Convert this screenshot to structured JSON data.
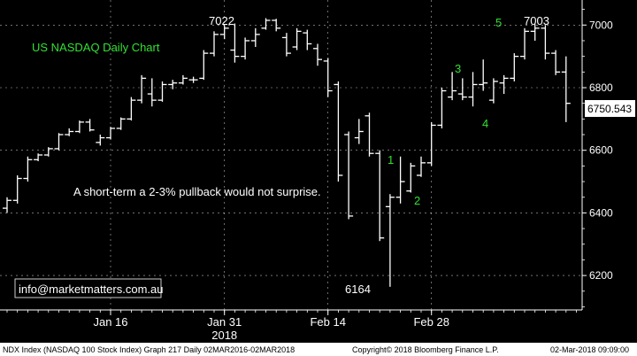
{
  "chart_data": {
    "type": "ohlc",
    "title": "US NASDAQ Daily Chart",
    "y_ticks": [
      6200,
      6400,
      6600,
      6800,
      7000
    ],
    "y_tick_labels": [
      "6200",
      "6400",
      "6600",
      "6800",
      "7000"
    ],
    "ylim": [
      6090,
      7080
    ],
    "x_tick_labels": [
      "Jan 16",
      "Jan 31",
      "Feb 14",
      "Feb 28"
    ],
    "x_tick_days": [
      10,
      21,
      31,
      41
    ],
    "x_year_label": "2018",
    "last_price": "6750.543",
    "colors": {
      "bars": "#ffffff",
      "grid": "#ffffff",
      "title": "#33e033",
      "wave_labels": "#33e033",
      "annotation": "#ffffff",
      "footer": "#000000"
    },
    "bars": [
      {
        "o": 6415,
        "h": 6450,
        "l": 6400,
        "c": 6440
      },
      {
        "o": 6440,
        "h": 6520,
        "l": 6430,
        "c": 6510
      },
      {
        "o": 6510,
        "h": 6580,
        "l": 6500,
        "c": 6570
      },
      {
        "o": 6570,
        "h": 6590,
        "l": 6565,
        "c": 6585
      },
      {
        "o": 6585,
        "h": 6610,
        "l": 6580,
        "c": 6605
      },
      {
        "o": 6605,
        "h": 6655,
        "l": 6600,
        "c": 6650
      },
      {
        "o": 6650,
        "h": 6670,
        "l": 6645,
        "c": 6660
      },
      {
        "o": 6660,
        "h": 6695,
        "l": 6655,
        "c": 6690
      },
      {
        "o": 6690,
        "h": 6700,
        "l": 6660,
        "c": 6665
      },
      {
        "o": 6625,
        "h": 6650,
        "l": 6615,
        "c": 6640
      },
      {
        "o": 6640,
        "h": 6675,
        "l": 6635,
        "c": 6670
      },
      {
        "o": 6670,
        "h": 6705,
        "l": 6665,
        "c": 6700
      },
      {
        "o": 6700,
        "h": 6770,
        "l": 6695,
        "c": 6760
      },
      {
        "o": 6760,
        "h": 6840,
        "l": 6750,
        "c": 6830
      },
      {
        "o": 6780,
        "h": 6830,
        "l": 6740,
        "c": 6760
      },
      {
        "o": 6760,
        "h": 6820,
        "l": 6755,
        "c": 6810
      },
      {
        "o": 6810,
        "h": 6825,
        "l": 6795,
        "c": 6815
      },
      {
        "o": 6815,
        "h": 6840,
        "l": 6810,
        "c": 6830
      },
      {
        "o": 6825,
        "h": 6835,
        "l": 6815,
        "c": 6825
      },
      {
        "o": 6830,
        "h": 6920,
        "l": 6825,
        "c": 6910
      },
      {
        "o": 6910,
        "h": 6980,
        "l": 6900,
        "c": 6970
      },
      {
        "o": 6970,
        "h": 7000,
        "l": 6955,
        "c": 6990
      },
      {
        "o": 6920,
        "h": 7005,
        "l": 6880,
        "c": 6900
      },
      {
        "o": 6900,
        "h": 6960,
        "l": 6890,
        "c": 6950
      },
      {
        "o": 6950,
        "h": 6990,
        "l": 6930,
        "c": 6970
      },
      {
        "o": 6990,
        "h": 7022,
        "l": 6985,
        "c": 7015
      },
      {
        "o": 7015,
        "h": 7020,
        "l": 6980,
        "c": 6990
      },
      {
        "o": 6960,
        "h": 6975,
        "l": 6900,
        "c": 6910
      },
      {
        "o": 6930,
        "h": 6990,
        "l": 6920,
        "c": 6980
      },
      {
        "o": 6975,
        "h": 6985,
        "l": 6920,
        "c": 6940
      },
      {
        "o": 6925,
        "h": 6940,
        "l": 6870,
        "c": 6890
      },
      {
        "o": 6885,
        "h": 6895,
        "l": 6770,
        "c": 6790
      },
      {
        "o": 6810,
        "h": 6820,
        "l": 6500,
        "c": 6520
      },
      {
        "o": 6650,
        "h": 6660,
        "l": 6380,
        "c": 6390
      },
      {
        "o": 6640,
        "h": 6700,
        "l": 6620,
        "c": 6660
      },
      {
        "o": 6710,
        "h": 6720,
        "l": 6580,
        "c": 6590
      },
      {
        "o": 6590,
        "h": 6600,
        "l": 6310,
        "c": 6320
      },
      {
        "o": 6420,
        "h": 6460,
        "l": 6164,
        "c": 6450
      },
      {
        "o": 6450,
        "h": 6580,
        "l": 6430,
        "c": 6500
      },
      {
        "o": 6470,
        "h": 6560,
        "l": 6465,
        "c": 6550
      },
      {
        "o": 6520,
        "h": 6580,
        "l": 6515,
        "c": 6560
      },
      {
        "o": 6560,
        "h": 6690,
        "l": 6550,
        "c": 6680
      },
      {
        "o": 6680,
        "h": 6800,
        "l": 6670,
        "c": 6790
      },
      {
        "o": 6770,
        "h": 6850,
        "l": 6760,
        "c": 6790
      },
      {
        "o": 6780,
        "h": 6830,
        "l": 6760,
        "c": 6770
      },
      {
        "o": 6770,
        "h": 6850,
        "l": 6740,
        "c": 6810
      },
      {
        "o": 6810,
        "h": 6890,
        "l": 6790,
        "c": 6815
      },
      {
        "o": 6760,
        "h": 6830,
        "l": 6750,
        "c": 6820
      },
      {
        "o": 6815,
        "h": 6840,
        "l": 6780,
        "c": 6830
      },
      {
        "o": 6830,
        "h": 6910,
        "l": 6820,
        "c": 6900
      },
      {
        "o": 6900,
        "h": 6990,
        "l": 6890,
        "c": 6980
      },
      {
        "o": 6980,
        "h": 7003,
        "l": 6950,
        "c": 6990
      },
      {
        "o": 6990,
        "h": 7000,
        "l": 6890,
        "c": 6910
      },
      {
        "o": 6910,
        "h": 6920,
        "l": 6840,
        "c": 6850
      },
      {
        "o": 6850,
        "h": 6900,
        "l": 6690,
        "c": 6750
      }
    ],
    "x_positions": [
      0,
      1,
      2,
      3,
      4,
      5,
      6,
      7,
      8,
      9,
      10,
      11,
      12,
      13,
      14,
      15,
      16,
      17,
      18,
      19,
      20,
      21,
      22,
      23,
      24,
      25,
      26,
      27,
      28,
      29,
      30,
      31,
      32,
      33,
      34,
      35,
      36,
      37,
      38,
      39,
      40,
      41,
      42,
      43,
      44,
      45,
      46,
      47,
      48,
      49,
      50,
      51,
      52,
      53,
      54
    ],
    "annotations": {
      "high_label_1": "7022",
      "high_label_2": "7003",
      "low_label": "6164",
      "wave_1": "1",
      "wave_2": "2",
      "wave_3": "3",
      "wave_4": "4",
      "wave_5": "5",
      "comment": "A short-term a 2-3% pullback would not surprise.",
      "watermark": "info@marketmatters.com.au"
    }
  },
  "footer": {
    "left": "NDX Index (NASDAQ 100 Stock Index) Graph 217  Daily 02MAR2016-02MAR2018",
    "center": "Copyright© 2018 Bloomberg Finance L.P.",
    "right": "02-Mar-2018 09:09:00"
  }
}
